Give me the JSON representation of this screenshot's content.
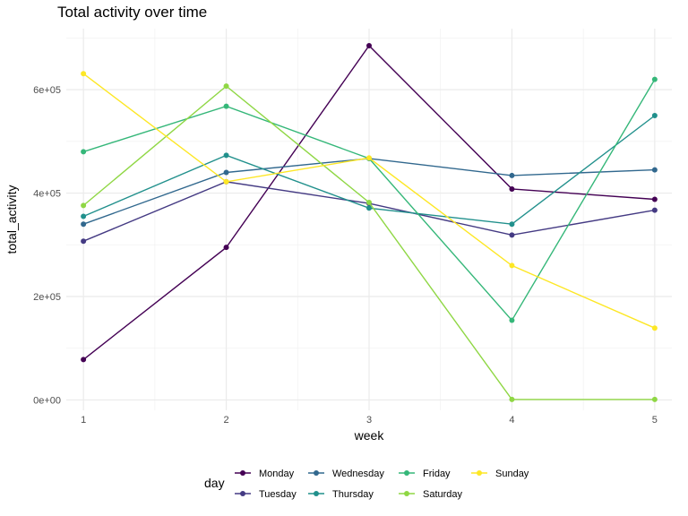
{
  "chart_data": {
    "type": "line",
    "title": "Total activity over time",
    "xlabel": "week",
    "ylabel": "total_activity",
    "x": [
      1,
      2,
      3,
      4,
      5
    ],
    "x_ticks": [
      "1",
      "2",
      "3",
      "4",
      "5"
    ],
    "xlim": [
      0.88,
      5.12
    ],
    "ylim": [
      -20000,
      718000
    ],
    "y_ticks": [
      0,
      200000,
      400000,
      600000
    ],
    "y_tick_labels": [
      "0e+00",
      "2e+05",
      "4e+05",
      "6e+05"
    ],
    "grid": true,
    "legend_position": "bottom",
    "legend_title": "day",
    "series": [
      {
        "name": "Monday",
        "color": "#440154",
        "values": [
          78000,
          295000,
          685000,
          408000,
          388000
        ]
      },
      {
        "name": "Tuesday",
        "color": "#443a83",
        "values": [
          307000,
          422000,
          380000,
          319000,
          367000
        ]
      },
      {
        "name": "Wednesday",
        "color": "#31688e",
        "values": [
          340000,
          440000,
          467000,
          434000,
          445000
        ]
      },
      {
        "name": "Thursday",
        "color": "#21908c",
        "values": [
          355000,
          473000,
          371000,
          340000,
          550000
        ]
      },
      {
        "name": "Friday",
        "color": "#35b779",
        "values": [
          480000,
          568000,
          467000,
          154000,
          620000
        ]
      },
      {
        "name": "Saturday",
        "color": "#8fd744",
        "values": [
          376000,
          607000,
          382000,
          1000,
          1000
        ]
      },
      {
        "name": "Sunday",
        "color": "#fde725",
        "values": [
          631000,
          422000,
          468000,
          260000,
          139000
        ]
      }
    ]
  }
}
